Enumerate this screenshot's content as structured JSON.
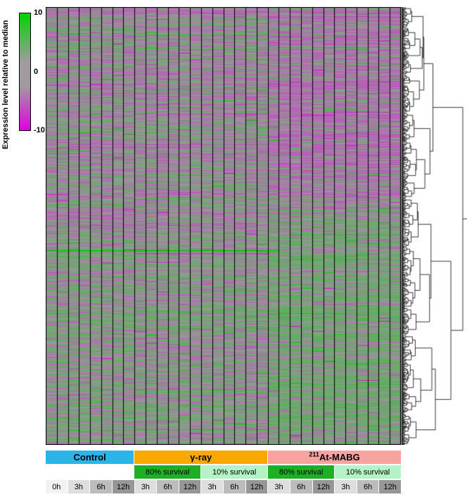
{
  "colorbar": {
    "axis_label": "Expression level relative to median",
    "ticks": [
      "10",
      "0",
      "-10"
    ],
    "gradient": [
      "#00d400",
      "#a19ba1",
      "#e000e0"
    ]
  },
  "groups": [
    {
      "label": "Control",
      "sup": "",
      "color": "#2ab4e8"
    },
    {
      "label": "γ-ray",
      "sup": "",
      "color": "#f8a800"
    },
    {
      "label": "At-MABG",
      "sup": "211",
      "color": "#f9a3a0"
    }
  ],
  "survival_segments": [
    {
      "label": "80% survival",
      "color": "#1eb024"
    },
    {
      "label": "10% survival",
      "color": "#b5f2c6"
    },
    {
      "label": "80% survival",
      "color": "#1eb024"
    },
    {
      "label": "10% survival",
      "color": "#b5f2c6"
    }
  ],
  "time_chips": [
    {
      "label": "0h",
      "color": "#f2f2f2"
    },
    {
      "label": "3h",
      "color": "#dedede"
    },
    {
      "label": "6h",
      "color": "#bcbcbc"
    },
    {
      "label": "12h",
      "color": "#969696"
    },
    {
      "label": "3h",
      "color": "#dedede"
    },
    {
      "label": "6h",
      "color": "#bcbcbc"
    },
    {
      "label": "12h",
      "color": "#969696"
    },
    {
      "label": "3h",
      "color": "#dedede"
    },
    {
      "label": "6h",
      "color": "#bcbcbc"
    },
    {
      "label": "12h",
      "color": "#969696"
    },
    {
      "label": "3h",
      "color": "#dedede"
    },
    {
      "label": "6h",
      "color": "#bcbcbc"
    },
    {
      "label": "12h",
      "color": "#969696"
    },
    {
      "label": "3h",
      "color": "#dedede"
    },
    {
      "label": "6h",
      "color": "#bcbcbc"
    },
    {
      "label": "12h",
      "color": "#969696"
    }
  ],
  "chart_data": {
    "type": "heatmap",
    "title": "",
    "value_scale": {
      "min": -10,
      "mid": 0,
      "max": 10,
      "min_color": "#e000e0",
      "mid_color": "#9d989d",
      "max_color": "#00cc00",
      "label": "Expression level relative to median"
    },
    "columns": [
      {
        "treatment": "Control",
        "survival": null,
        "time": "0h"
      },
      {
        "treatment": "Control",
        "survival": null,
        "time": "3h"
      },
      {
        "treatment": "Control",
        "survival": null,
        "time": "6h"
      },
      {
        "treatment": "Control",
        "survival": null,
        "time": "12h"
      },
      {
        "treatment": "γ-ray",
        "survival": "80%",
        "time": "3h"
      },
      {
        "treatment": "γ-ray",
        "survival": "80%",
        "time": "6h"
      },
      {
        "treatment": "γ-ray",
        "survival": "80%",
        "time": "12h"
      },
      {
        "treatment": "γ-ray",
        "survival": "10%",
        "time": "3h"
      },
      {
        "treatment": "γ-ray",
        "survival": "10%",
        "time": "6h"
      },
      {
        "treatment": "γ-ray",
        "survival": "10%",
        "time": "12h"
      },
      {
        "treatment": "211At-MABG",
        "survival": "80%",
        "time": "3h"
      },
      {
        "treatment": "211At-MABG",
        "survival": "80%",
        "time": "6h"
      },
      {
        "treatment": "211At-MABG",
        "survival": "80%",
        "time": "12h"
      },
      {
        "treatment": "211At-MABG",
        "survival": "10%",
        "time": "3h"
      },
      {
        "treatment": "211At-MABG",
        "survival": "10%",
        "time": "6h"
      },
      {
        "treatment": "211At-MABG",
        "survival": "10%",
        "time": "12h"
      }
    ],
    "rows": {
      "description": "genes, hierarchically clustered (row dendrogram at right); individual gene labels and per-cell values are not legible at this scale"
    },
    "legend_position": "left",
    "render": {
      "seed": 42,
      "rows": 622,
      "cols": 32,
      "group_cols": [
        8,
        12,
        12
      ],
      "replicates_per_timepoint": 2,
      "noise": {
        "cell": 0.8,
        "row": 0.55,
        "global_row": 0.35,
        "outlier_p": 0.004,
        "dash_p": 0.03
      },
      "bias": {
        "split": 0.52,
        "top": -0.12,
        "bottom": 0.3,
        "at_split": 0.46,
        "at_top": -0.55,
        "at_bottom": 0.45
      },
      "streaks": [
        {
          "row": 0.555,
          "col_start": 0,
          "col_end": 21,
          "value": 8,
          "thick": 2
        },
        {
          "row": 0.563,
          "col_start": 8,
          "col_end": 20,
          "value": -7,
          "thick": 1
        },
        {
          "row": 0.06,
          "col_start": 1,
          "col_end": 5,
          "value": 6,
          "thick": 1
        },
        {
          "row": 0.52,
          "col_start": 22,
          "col_end": 32,
          "value": 5,
          "thick": 1
        },
        {
          "row": 0.7,
          "col_start": 20,
          "col_end": 27,
          "value": 6,
          "thick": 1
        },
        {
          "row": 0.24,
          "col_start": 25,
          "col_end": 31,
          "value": -6,
          "thick": 1
        },
        {
          "row": 0.965,
          "col_start": 8,
          "col_end": 20,
          "value": 5,
          "thick": 1
        }
      ]
    }
  }
}
